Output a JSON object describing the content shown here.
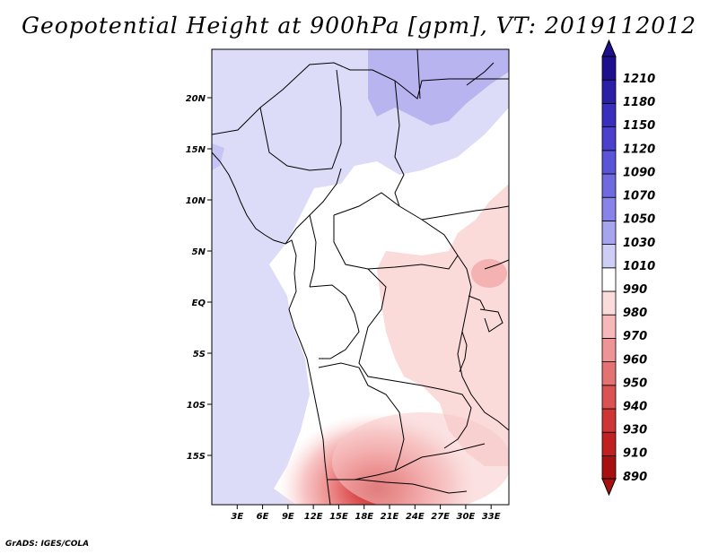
{
  "title": "Geopotential Height at 900hPa [gpm], VT: 2019112012",
  "credit": "GrADS: IGES/COLA",
  "map": {
    "lon_range": [
      0,
      35
    ],
    "lat_range": [
      -20,
      25
    ],
    "lon_ticks": [
      "3E",
      "6E",
      "9E",
      "12E",
      "15E",
      "18E",
      "21E",
      "24E",
      "27E",
      "30E",
      "33E"
    ],
    "lat_ticks": [
      "20N",
      "15N",
      "10N",
      "5N",
      "EQ",
      "5S",
      "10S",
      "15S"
    ]
  },
  "colorbar": {
    "levels": [
      "1210",
      "1180",
      "1150",
      "1120",
      "1090",
      "1070",
      "1050",
      "1030",
      "1010",
      "990",
      "980",
      "970",
      "960",
      "950",
      "940",
      "930",
      "910",
      "890"
    ],
    "colors": [
      "#1e0f8c",
      "#2b1fa6",
      "#3a2fbd",
      "#4a40cc",
      "#5a54d6",
      "#6f6ae0",
      "#8883e8",
      "#a6a3ef",
      "#cdcdf6",
      "#ffffff",
      "#fbdcdc",
      "#f6b8b8",
      "#ee9494",
      "#e47272",
      "#da5252",
      "#ce3636",
      "#c02020",
      "#a81010"
    ]
  },
  "icons": {
    "arrow_top": "triangle-up",
    "arrow_bottom": "triangle-down"
  }
}
